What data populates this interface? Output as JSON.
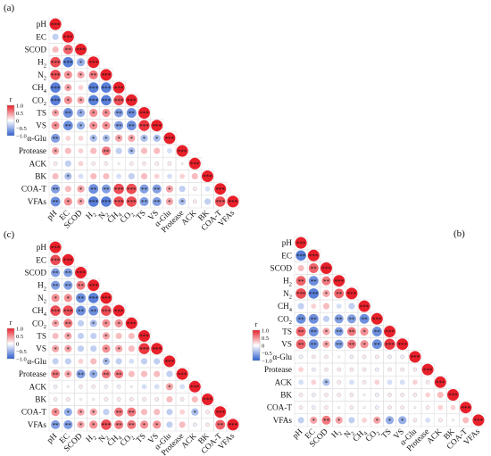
{
  "variables": [
    "pH",
    "EC",
    "SCOD",
    "H2",
    "N2",
    "CH4",
    "CO2",
    "TS",
    "VS",
    "α-Glu",
    "Protease",
    "ACK",
    "BK",
    "COA-T",
    "VFAs"
  ],
  "variable_labels": [
    {
      "base": "pH",
      "sub": ""
    },
    {
      "base": "EC",
      "sub": ""
    },
    {
      "base": "SCOD",
      "sub": ""
    },
    {
      "base": "H",
      "sub": "2"
    },
    {
      "base": "N",
      "sub": "2"
    },
    {
      "base": "CH",
      "sub": "4"
    },
    {
      "base": "CO",
      "sub": "2"
    },
    {
      "base": "TS",
      "sub": ""
    },
    {
      "base": "VS",
      "sub": ""
    },
    {
      "base": "α-Glu",
      "sub": ""
    },
    {
      "base": "Protease",
      "sub": ""
    },
    {
      "base": "ACK",
      "sub": ""
    },
    {
      "base": "BK",
      "sub": ""
    },
    {
      "base": "COA-T",
      "sub": ""
    },
    {
      "base": "VFAs",
      "sub": ""
    }
  ],
  "colorbar": {
    "title": "r",
    "ticks": [
      "1.0",
      "0.5",
      "0",
      "−0.5",
      "−1.0"
    ],
    "tick_values": [
      1.0,
      0.5,
      0,
      -0.5,
      -1.0
    ],
    "colors": {
      "positive": "#e8202a",
      "neutral": "#ffffff",
      "negative": "#2f5fd0"
    }
  },
  "chart_data": [
    {
      "type": "heatmap",
      "panel_label": "(a)",
      "variables": [
        "pH",
        "EC",
        "SCOD",
        "H2",
        "N2",
        "CH4",
        "CO2",
        "TS",
        "VS",
        "α-Glu",
        "Protease",
        "ACK",
        "BK",
        "COA-T",
        "VFAs"
      ],
      "lower_triangle_r": [
        [
          1.0
        ],
        [
          -0.3,
          1.0
        ],
        [
          0.3,
          0.7,
          1.0
        ],
        [
          0.8,
          -0.8,
          -0.5,
          1.0
        ],
        [
          0.8,
          0.5,
          0.4,
          0.6,
          1.0
        ],
        [
          -0.8,
          0.4,
          0.2,
          -0.8,
          -0.8,
          1.0
        ],
        [
          -0.8,
          0.5,
          0.4,
          -0.8,
          -0.8,
          0.8,
          1.0
        ],
        [
          0.4,
          -0.7,
          -0.5,
          0.5,
          0.5,
          -0.6,
          -0.7,
          1.0
        ],
        [
          0.5,
          -0.7,
          -0.5,
          0.5,
          0.5,
          -0.6,
          -0.7,
          0.9,
          1.0
        ],
        [
          -0.6,
          0.2,
          0.2,
          -0.4,
          -0.4,
          0.4,
          0.4,
          -0.4,
          -0.4,
          1.0
        ],
        [
          0.4,
          0.3,
          0.2,
          0.3,
          0.6,
          -0.3,
          -0.4,
          0.3,
          0.3,
          -0.2,
          1.0
        ],
        [
          0.1,
          -0.3,
          0.2,
          0.1,
          0.1,
          0.0,
          0.1,
          0.1,
          0.1,
          0.1,
          0.0,
          1.0
        ],
        [
          0.3,
          -0.4,
          -0.2,
          0.3,
          0.3,
          -0.2,
          -0.3,
          0.3,
          0.2,
          -0.2,
          0.2,
          0.3,
          1.0
        ],
        [
          -0.6,
          0.3,
          0.4,
          -0.7,
          -0.6,
          0.8,
          0.8,
          -0.6,
          -0.6,
          0.4,
          -0.3,
          0.1,
          -0.2,
          1.0
        ],
        [
          -0.7,
          0.5,
          0.4,
          -0.8,
          -0.8,
          0.8,
          0.8,
          -0.6,
          -0.6,
          0.4,
          -0.4,
          0.1,
          -0.3,
          0.8,
          1.0
        ]
      ]
    },
    {
      "type": "heatmap",
      "panel_label": "(c)",
      "variables": [
        "pH",
        "EC",
        "SCOD",
        "H2",
        "N2",
        "CH4",
        "CO2",
        "TS",
        "VS",
        "α-Glu",
        "Protease",
        "ACK",
        "BK",
        "COA-T",
        "VFAs"
      ],
      "lower_triangle_r": [
        [
          1.0
        ],
        [
          0.8,
          1.0
        ],
        [
          -0.6,
          -0.6,
          1.0
        ],
        [
          -0.6,
          -0.6,
          0.6,
          1.0
        ],
        [
          0.5,
          0.5,
          -0.7,
          -0.8,
          1.0
        ],
        [
          0.8,
          0.8,
          -0.7,
          -0.7,
          0.8,
          1.0
        ],
        [
          0.4,
          0.6,
          -0.3,
          -0.4,
          0.5,
          0.5,
          1.0
        ],
        [
          0.3,
          0.4,
          -0.3,
          -0.3,
          0.4,
          0.3,
          0.3,
          1.0
        ],
        [
          0.4,
          0.4,
          -0.3,
          -0.3,
          0.5,
          0.4,
          0.3,
          0.9,
          1.0
        ],
        [
          -0.3,
          -0.3,
          0.2,
          0.3,
          -0.4,
          -0.3,
          -0.2,
          -0.3,
          -0.3,
          1.0
        ],
        [
          0.6,
          0.4,
          -0.6,
          -0.5,
          0.6,
          0.6,
          0.3,
          0.3,
          0.3,
          -0.3,
          1.0
        ],
        [
          -0.1,
          0.0,
          0.1,
          0.1,
          -0.1,
          -0.1,
          0.0,
          -0.2,
          -0.2,
          0.4,
          -0.2,
          1.0
        ],
        [
          0.1,
          0.1,
          0.0,
          0.0,
          0.1,
          0.1,
          0.1,
          0.1,
          0.1,
          0.3,
          0.1,
          0.3,
          1.0
        ],
        [
          0.5,
          -0.5,
          0.4,
          0.4,
          -0.3,
          0.6,
          0.6,
          0.3,
          0.3,
          -0.3,
          0.2,
          -0.4,
          0.1,
          1.0
        ],
        [
          -0.6,
          -0.6,
          0.4,
          0.5,
          0.8,
          0.6,
          0.6,
          0.5,
          0.5,
          -0.3,
          0.3,
          -0.1,
          0.1,
          0.7,
          1.0
        ]
      ]
    },
    {
      "type": "heatmap",
      "panel_label": "(b)",
      "variables": [
        "pH",
        "EC",
        "SCOD",
        "H2",
        "N2",
        "CH4",
        "CO2",
        "TS",
        "VS",
        "α-Glu",
        "Protease",
        "ACK",
        "BK",
        "COA-T",
        "VFAs"
      ],
      "lower_triangle_r": [
        [
          1.0
        ],
        [
          -0.8,
          1.0
        ],
        [
          0.3,
          0.7,
          1.0
        ],
        [
          0.7,
          -0.7,
          0.6,
          1.0
        ],
        [
          0.8,
          -0.8,
          0.4,
          0.7,
          1.0
        ],
        [
          -0.3,
          0.2,
          0.3,
          -0.2,
          -0.3,
          1.0
        ],
        [
          -0.7,
          -0.7,
          -0.3,
          -0.6,
          -0.6,
          -0.7,
          1.0
        ],
        [
          0.7,
          -0.7,
          0.4,
          -0.6,
          0.6,
          0.5,
          -0.7,
          1.0
        ],
        [
          0.7,
          -0.7,
          0.4,
          -0.6,
          0.6,
          0.5,
          -0.7,
          0.9,
          1.0
        ],
        [
          -0.1,
          0.1,
          0.1,
          0.0,
          -0.1,
          0.1,
          0.1,
          -0.1,
          -0.1,
          1.0
        ],
        [
          0.2,
          -0.1,
          0.1,
          0.1,
          0.1,
          0.1,
          -0.1,
          0.1,
          0.1,
          0.1,
          1.0
        ],
        [
          -0.2,
          0.2,
          -0.4,
          0.1,
          -0.2,
          0.1,
          0.2,
          -0.2,
          -0.2,
          0.2,
          0.1,
          1.0
        ],
        [
          0.1,
          -0.1,
          0.1,
          0.1,
          0.1,
          0.0,
          -0.1,
          0.1,
          0.1,
          0.1,
          0.2,
          0.3,
          1.0
        ],
        [
          0.1,
          -0.1,
          0.1,
          0.0,
          0.1,
          0.0,
          -0.1,
          0.1,
          0.1,
          0.0,
          0.1,
          0.2,
          0.2,
          1.0
        ],
        [
          -0.3,
          0.4,
          0.6,
          0.4,
          -0.3,
          0.2,
          0.4,
          -0.5,
          -0.5,
          0.1,
          -0.2,
          0.1,
          0.0,
          0.3,
          1.0
        ]
      ]
    }
  ]
}
